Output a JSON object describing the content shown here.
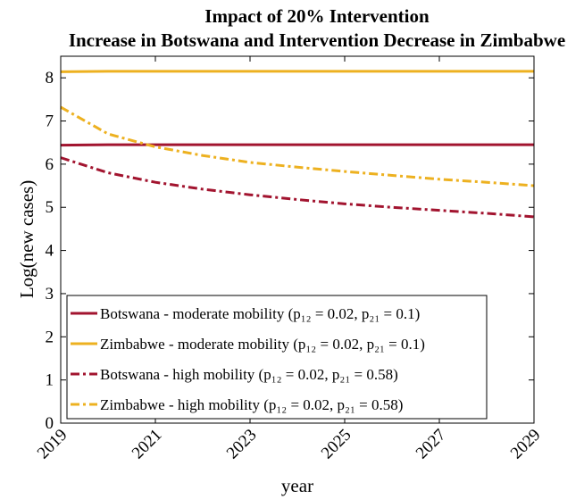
{
  "chart_data": {
    "type": "line",
    "title": [
      "Impact of 20% Intervention",
      "Increase in  Botswana and Intervention Decrease in Zimbabwe"
    ],
    "x_label": "year",
    "y_label": "Log(new cases)",
    "x": [
      2019,
      2020,
      2021,
      2022,
      2023,
      2024,
      2025,
      2026,
      2027,
      2028,
      2029
    ],
    "series": [
      {
        "name": "Botswana - moderate mobility (p₁₂ = 0.02, p₂₁ = 0.1)",
        "color": "#a2142f",
        "style": "solid",
        "values": [
          6.44,
          6.45,
          6.45,
          6.45,
          6.45,
          6.45,
          6.45,
          6.45,
          6.45,
          6.45,
          6.45
        ]
      },
      {
        "name": "Zimbabwe - moderate mobility (p₁₂ = 0.02, p₂₁ = 0.1)",
        "color": "#edb120",
        "style": "solid",
        "values": [
          8.14,
          8.15,
          8.15,
          8.15,
          8.15,
          8.15,
          8.15,
          8.15,
          8.15,
          8.15,
          8.15
        ]
      },
      {
        "name": "Botswana - high mobility (p₁₂ = 0.02, p₂₁ = 0.58)",
        "color": "#a2142f",
        "style": "dashdot",
        "values": [
          6.15,
          5.8,
          5.58,
          5.42,
          5.29,
          5.18,
          5.08,
          5.0,
          4.93,
          4.86,
          4.78
        ]
      },
      {
        "name": "Zimbabwe - high mobility (p₁₂ = 0.02, p₂₁ = 0.58)",
        "color": "#edb120",
        "style": "dashdot",
        "values": [
          7.32,
          6.7,
          6.4,
          6.2,
          6.04,
          5.93,
          5.83,
          5.74,
          5.65,
          5.58,
          5.5
        ]
      }
    ],
    "xlim": [
      2019,
      2029
    ],
    "xticks": [
      2019,
      2021,
      2023,
      2025,
      2027,
      2029
    ],
    "ylim": [
      0,
      8.5
    ],
    "yticks": [
      0,
      1,
      2,
      3,
      4,
      5,
      6,
      7,
      8
    ],
    "grid": false,
    "legend": "lower left"
  }
}
